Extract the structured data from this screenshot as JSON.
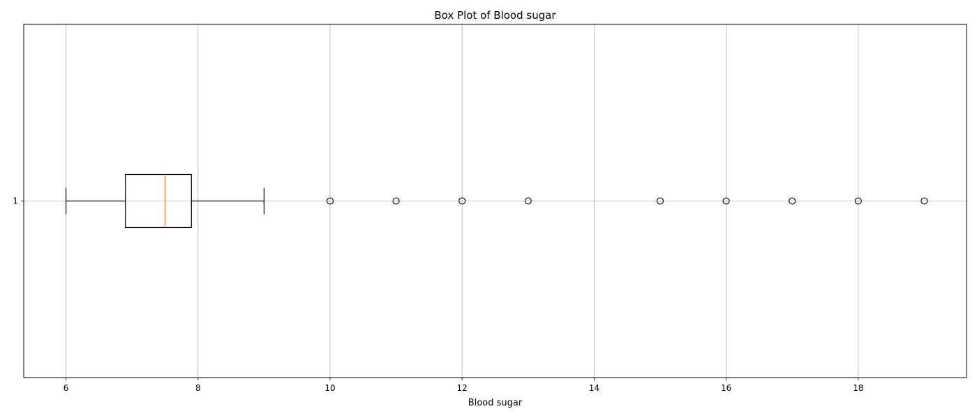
{
  "chart_data": {
    "type": "box",
    "orientation": "horizontal",
    "title": "Box Plot of Blood sugar",
    "xlabel": "Blood sugar",
    "ylabel": "",
    "xlim": [
      5.36,
      19.64
    ],
    "xticks": [
      6,
      8,
      10,
      12,
      14,
      16,
      18
    ],
    "yticks": [
      "1"
    ],
    "grid": true,
    "boxes": [
      {
        "position": "1",
        "whisker_low": 6.0,
        "q1": 6.9,
        "median": 7.5,
        "q3": 7.9,
        "whisker_high": 9.0,
        "outliers": [
          10,
          11,
          12,
          13,
          15,
          16,
          17,
          18,
          19
        ]
      }
    ],
    "colors": {
      "box": "#000000",
      "median": "#ff7f0e",
      "grid": "#b0b0b0"
    }
  }
}
